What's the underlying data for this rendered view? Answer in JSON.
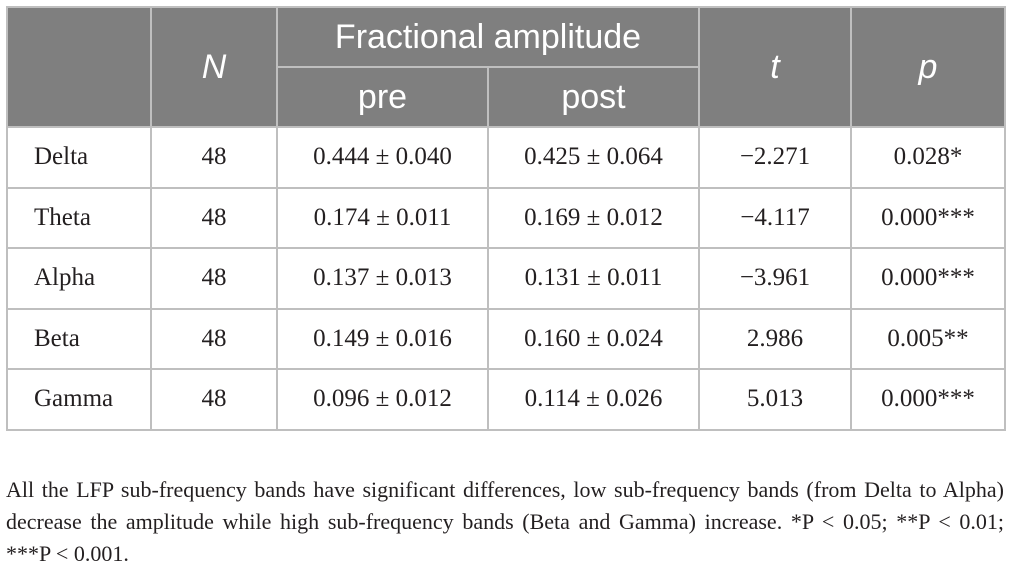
{
  "table": {
    "headers": {
      "band": "",
      "n": "N",
      "fractional_amplitude": "Fractional amplitude",
      "pre": "pre",
      "post": "post",
      "t": "t",
      "p": "p"
    },
    "rows": [
      {
        "band": "Delta",
        "n": "48",
        "pre": "0.444 ± 0.040",
        "post": "0.425 ± 0.064",
        "t": "−2.271",
        "p": "0.028*"
      },
      {
        "band": "Theta",
        "n": "48",
        "pre": "0.174 ± 0.011",
        "post": "0.169 ± 0.012",
        "t": "−4.117",
        "p": "0.000***"
      },
      {
        "band": "Alpha",
        "n": "48",
        "pre": "0.137 ± 0.013",
        "post": "0.131 ± 0.011",
        "t": "−3.961",
        "p": "0.000***"
      },
      {
        "band": "Beta",
        "n": "48",
        "pre": "0.149 ± 0.016",
        "post": "0.160 ± 0.024",
        "t": "2.986",
        "p": "0.005**"
      },
      {
        "band": "Gamma",
        "n": "48",
        "pre": "0.096 ± 0.012",
        "post": "0.114 ± 0.026",
        "t": "5.013",
        "p": "0.000***"
      }
    ]
  },
  "caption": "All the LFP sub-frequency bands have significant differences, low sub-frequency bands (from Delta to Alpha) decrease the amplitude while high sub-frequency bands (Beta and Gamma) increase. *P < 0.05; **P < 0.01; ***P < 0.001.",
  "colors": {
    "header_bg": "#7f7f7f",
    "grid": "#bfbfbf",
    "text": "#231f20"
  }
}
